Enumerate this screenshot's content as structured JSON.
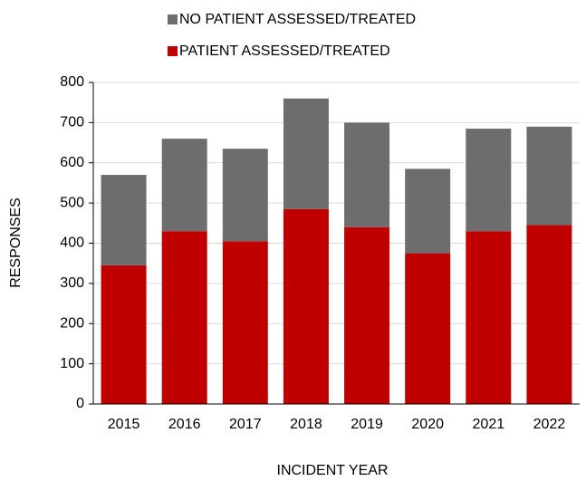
{
  "chart_data": {
    "type": "stacked_bar",
    "categories": [
      "2015",
      "2016",
      "2017",
      "2018",
      "2019",
      "2020",
      "2021",
      "2022"
    ],
    "series": [
      {
        "name": "PATIENT ASSESSED/TREATED",
        "color": "#c00000",
        "values": [
          345,
          430,
          405,
          485,
          440,
          375,
          430,
          445
        ]
      },
      {
        "name": "NO PATIENT ASSESSED/TREATED",
        "color": "#6d6d6d",
        "values": [
          225,
          230,
          230,
          275,
          260,
          210,
          255,
          245
        ]
      }
    ],
    "ylim": [
      0,
      800
    ],
    "yticks": [
      0,
      100,
      200,
      300,
      400,
      500,
      600,
      700,
      800
    ],
    "xlabel": "INCIDENT YEAR",
    "ylabel": "RESPONSES",
    "grid": true,
    "legend": "top"
  }
}
